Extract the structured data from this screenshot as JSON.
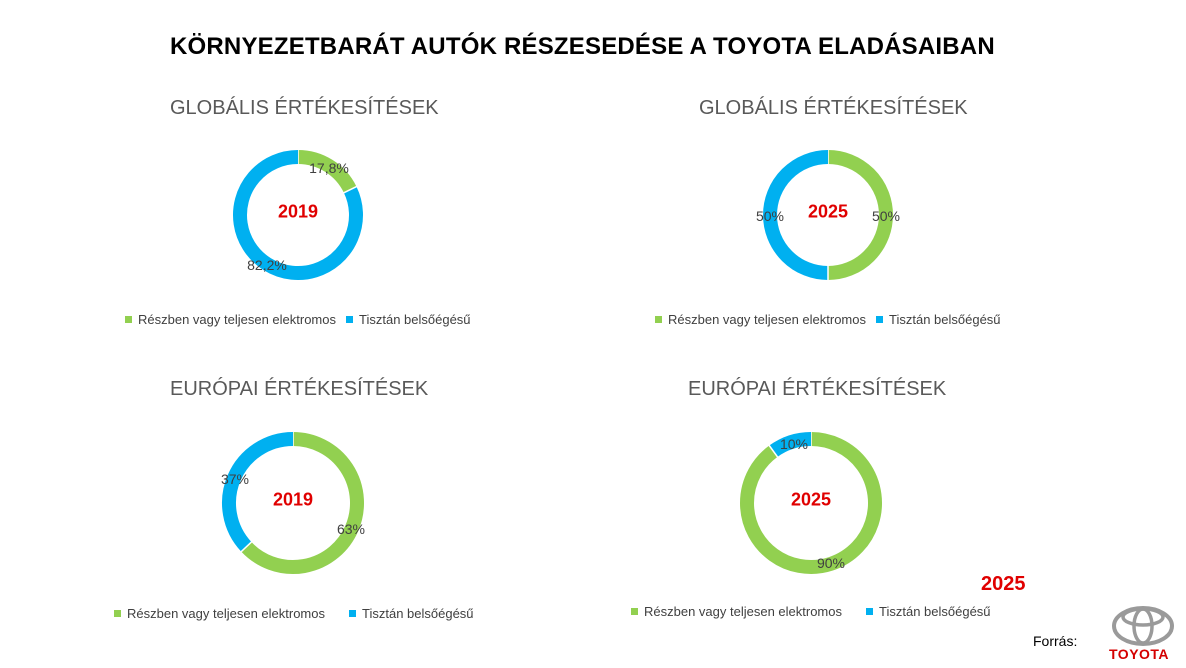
{
  "title": "KÖRNYEZETBARÁT AUTÓK RÉSZESEDÉSE A TOYOTA ELADÁSAIBAN",
  "colors": {
    "green": "#92d050",
    "blue": "#00b0f0",
    "year": "#e00000"
  },
  "legend": [
    "Részben vagy teljesen elektromos",
    "Tisztán belsőégésű"
  ],
  "chart_data": [
    {
      "type": "pie",
      "title": "GLOBÁLIS ÉRTÉKESÍTÉSEK",
      "center_label": "2019",
      "categories": [
        "Részben vagy teljesen elektromos",
        "Tisztán belsőégésű"
      ],
      "values": [
        17.8,
        82.2
      ],
      "data_labels": [
        "17,8%",
        "82,2%"
      ],
      "legend": "bottom"
    },
    {
      "type": "pie",
      "title": "GLOBÁLIS ÉRTÉKESÍTÉSEK",
      "center_label": "2025",
      "categories": [
        "Részben vagy teljesen elektromos",
        "Tisztán belsőégésű"
      ],
      "values": [
        50,
        50
      ],
      "data_labels": [
        "50%",
        "50%"
      ],
      "legend": "bottom"
    },
    {
      "type": "pie",
      "title": "EURÓPAI ÉRTÉKESÍTÉSEK",
      "center_label": "2019",
      "categories": [
        "Részben vagy teljesen elektromos",
        "Tisztán belsőégésű"
      ],
      "values": [
        63,
        37
      ],
      "data_labels": [
        "63%",
        "37%"
      ],
      "legend": "bottom"
    },
    {
      "type": "pie",
      "title": "EURÓPAI ÉRTÉKESÍTÉSEK",
      "center_label": "2025",
      "categories": [
        "Részben vagy teljesen elektromos",
        "Tisztán belsőégésű"
      ],
      "values": [
        90,
        10
      ],
      "data_labels": [
        "90%",
        "10%"
      ],
      "legend": "bottom"
    }
  ],
  "floating_year": "2025",
  "source_label": "Forrás:",
  "logo": {
    "icon": "toyota-logo-icon",
    "text": "TOYOTA"
  }
}
